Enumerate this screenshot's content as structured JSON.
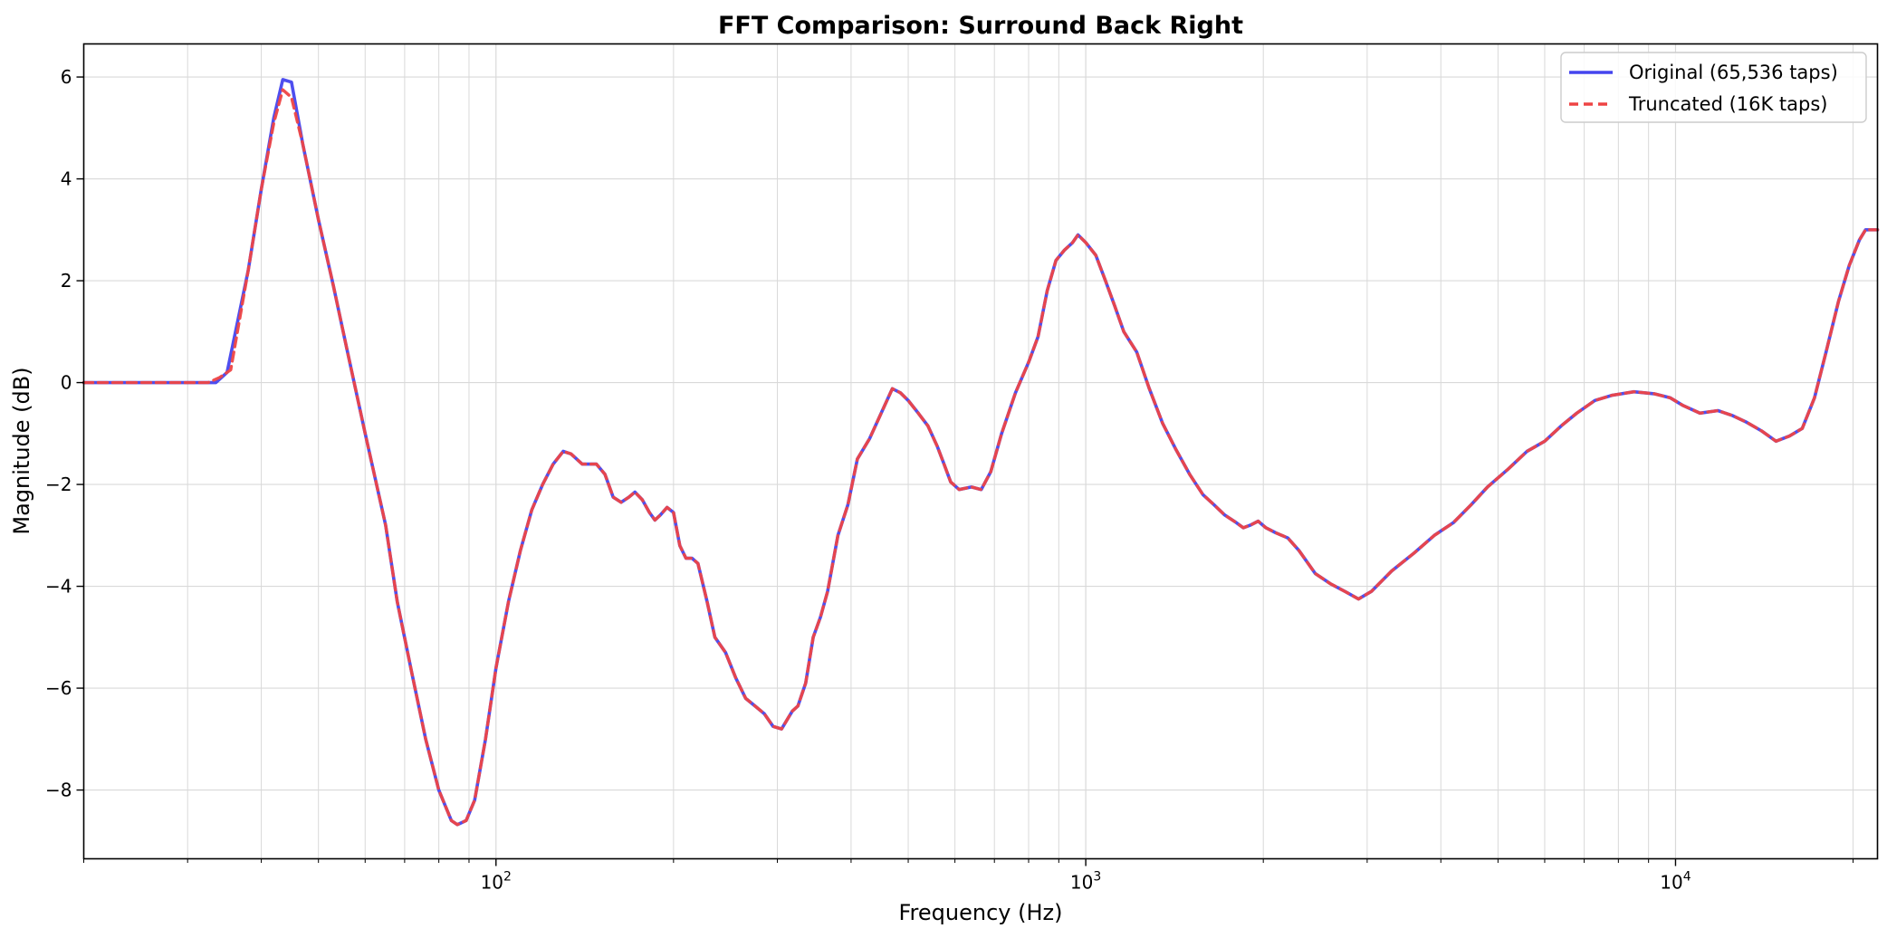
{
  "chart_data": {
    "type": "line",
    "title": "FFT Comparison: Surround Back Right",
    "xlabel": "Frequency (Hz)",
    "ylabel": "Magnitude (dB)",
    "xscale": "log",
    "xlim": [
      20,
      22000
    ],
    "ylim": [
      -9.35,
      6.65
    ],
    "x_ticks": [
      {
        "value": 100,
        "base": "10",
        "exp": "2"
      },
      {
        "value": 1000,
        "base": "10",
        "exp": "3"
      },
      {
        "value": 10000,
        "base": "10",
        "exp": "4"
      }
    ],
    "y_ticks": [
      {
        "value": 6,
        "label": "6"
      },
      {
        "value": 4,
        "label": "4"
      },
      {
        "value": 2,
        "label": "2"
      },
      {
        "value": 0,
        "label": "0"
      },
      {
        "value": -2,
        "label": "−2"
      },
      {
        "value": -4,
        "label": "−4"
      },
      {
        "value": -6,
        "label": "−6"
      },
      {
        "value": -8,
        "label": "−8"
      }
    ],
    "grid": true,
    "legend_position": "top-right",
    "series": [
      {
        "name": "Original (65,536 taps)",
        "color": "#4444ee",
        "style": "solid",
        "points": [
          [
            20,
            0
          ],
          [
            30,
            0
          ],
          [
            33.5,
            0.0
          ],
          [
            35,
            0.2
          ],
          [
            38,
            2.2
          ],
          [
            40,
            3.8
          ],
          [
            42,
            5.2
          ],
          [
            43.5,
            5.95
          ],
          [
            45,
            5.9
          ],
          [
            47,
            4.7
          ],
          [
            50,
            3.2
          ],
          [
            53,
            1.9
          ],
          [
            56,
            0.6
          ],
          [
            60,
            -1.0
          ],
          [
            65,
            -2.8
          ],
          [
            68,
            -4.3
          ],
          [
            72,
            -5.7
          ],
          [
            76,
            -7.0
          ],
          [
            80,
            -8.0
          ],
          [
            84,
            -8.6
          ],
          [
            86,
            -8.68
          ],
          [
            89,
            -8.6
          ],
          [
            92,
            -8.2
          ],
          [
            96,
            -7.0
          ],
          [
            100,
            -5.6
          ],
          [
            105,
            -4.3
          ],
          [
            110,
            -3.3
          ],
          [
            115,
            -2.5
          ],
          [
            120,
            -2.0
          ],
          [
            125,
            -1.6
          ],
          [
            130,
            -1.35
          ],
          [
            134,
            -1.4
          ],
          [
            140,
            -1.6
          ],
          [
            148,
            -1.6
          ],
          [
            153,
            -1.8
          ],
          [
            158,
            -2.25
          ],
          [
            163,
            -2.35
          ],
          [
            168,
            -2.25
          ],
          [
            172,
            -2.15
          ],
          [
            177,
            -2.3
          ],
          [
            182,
            -2.55
          ],
          [
            186,
            -2.7
          ],
          [
            190,
            -2.6
          ],
          [
            195,
            -2.45
          ],
          [
            200,
            -2.55
          ],
          [
            205,
            -3.2
          ],
          [
            210,
            -3.45
          ],
          [
            215,
            -3.45
          ],
          [
            220,
            -3.55
          ],
          [
            228,
            -4.3
          ],
          [
            235,
            -5.0
          ],
          [
            245,
            -5.3
          ],
          [
            255,
            -5.8
          ],
          [
            265,
            -6.2
          ],
          [
            275,
            -6.35
          ],
          [
            285,
            -6.5
          ],
          [
            295,
            -6.75
          ],
          [
            305,
            -6.8
          ],
          [
            318,
            -6.45
          ],
          [
            325,
            -6.35
          ],
          [
            335,
            -5.9
          ],
          [
            345,
            -5.0
          ],
          [
            355,
            -4.6
          ],
          [
            365,
            -4.1
          ],
          [
            380,
            -3.0
          ],
          [
            395,
            -2.4
          ],
          [
            410,
            -1.5
          ],
          [
            430,
            -1.1
          ],
          [
            450,
            -0.6
          ],
          [
            470,
            -0.12
          ],
          [
            485,
            -0.2
          ],
          [
            500,
            -0.35
          ],
          [
            520,
            -0.6
          ],
          [
            540,
            -0.85
          ],
          [
            560,
            -1.25
          ],
          [
            575,
            -1.6
          ],
          [
            590,
            -1.95
          ],
          [
            610,
            -2.1
          ],
          [
            640,
            -2.05
          ],
          [
            665,
            -2.1
          ],
          [
            690,
            -1.75
          ],
          [
            720,
            -1.0
          ],
          [
            760,
            -0.2
          ],
          [
            800,
            0.4
          ],
          [
            830,
            0.9
          ],
          [
            860,
            1.8
          ],
          [
            890,
            2.4
          ],
          [
            920,
            2.6
          ],
          [
            950,
            2.75
          ],
          [
            970,
            2.9
          ],
          [
            1000,
            2.75
          ],
          [
            1040,
            2.5
          ],
          [
            1080,
            2.0
          ],
          [
            1120,
            1.5
          ],
          [
            1160,
            1.0
          ],
          [
            1220,
            0.6
          ],
          [
            1280,
            -0.1
          ],
          [
            1350,
            -0.8
          ],
          [
            1420,
            -1.3
          ],
          [
            1500,
            -1.8
          ],
          [
            1580,
            -2.2
          ],
          [
            1650,
            -2.4
          ],
          [
            1720,
            -2.6
          ],
          [
            1800,
            -2.75
          ],
          [
            1850,
            -2.85
          ],
          [
            1900,
            -2.8
          ],
          [
            1960,
            -2.72
          ],
          [
            2020,
            -2.85
          ],
          [
            2100,
            -2.95
          ],
          [
            2200,
            -3.05
          ],
          [
            2300,
            -3.3
          ],
          [
            2450,
            -3.75
          ],
          [
            2600,
            -3.95
          ],
          [
            2750,
            -4.1
          ],
          [
            2900,
            -4.25
          ],
          [
            3050,
            -4.1
          ],
          [
            3300,
            -3.7
          ],
          [
            3600,
            -3.35
          ],
          [
            3900,
            -3.0
          ],
          [
            4200,
            -2.75
          ],
          [
            4500,
            -2.4
          ],
          [
            4800,
            -2.05
          ],
          [
            5200,
            -1.7
          ],
          [
            5600,
            -1.35
          ],
          [
            6000,
            -1.15
          ],
          [
            6400,
            -0.85
          ],
          [
            6800,
            -0.6
          ],
          [
            7300,
            -0.35
          ],
          [
            7800,
            -0.25
          ],
          [
            8500,
            -0.18
          ],
          [
            9200,
            -0.22
          ],
          [
            9800,
            -0.3
          ],
          [
            10300,
            -0.45
          ],
          [
            11000,
            -0.6
          ],
          [
            11800,
            -0.55
          ],
          [
            12500,
            -0.65
          ],
          [
            13200,
            -0.78
          ],
          [
            14000,
            -0.95
          ],
          [
            14800,
            -1.15
          ],
          [
            15600,
            -1.05
          ],
          [
            16400,
            -0.9
          ],
          [
            17200,
            -0.3
          ],
          [
            18000,
            0.6
          ],
          [
            18900,
            1.6
          ],
          [
            19700,
            2.3
          ],
          [
            20500,
            2.8
          ],
          [
            21000,
            3.0
          ],
          [
            22000,
            3.0
          ]
        ]
      },
      {
        "name": "Truncated (16K taps)",
        "color": "#ee4444",
        "style": "dashed",
        "points": [
          [
            20,
            0
          ],
          [
            30,
            0
          ],
          [
            32.5,
            0.0
          ],
          [
            34,
            0.1
          ],
          [
            35.5,
            0.25
          ],
          [
            38,
            2.2
          ],
          [
            40,
            3.8
          ],
          [
            42,
            5.1
          ],
          [
            43.5,
            5.75
          ],
          [
            45,
            5.6
          ],
          [
            47,
            4.7
          ],
          [
            50,
            3.2
          ],
          [
            53,
            1.9
          ],
          [
            56,
            0.6
          ],
          [
            60,
            -1.0
          ],
          [
            65,
            -2.8
          ],
          [
            68,
            -4.3
          ],
          [
            72,
            -5.7
          ],
          [
            76,
            -7.0
          ],
          [
            80,
            -8.0
          ],
          [
            84,
            -8.6
          ],
          [
            86,
            -8.68
          ],
          [
            89,
            -8.6
          ],
          [
            92,
            -8.2
          ],
          [
            96,
            -7.0
          ],
          [
            100,
            -5.6
          ],
          [
            105,
            -4.3
          ],
          [
            110,
            -3.3
          ],
          [
            115,
            -2.5
          ],
          [
            120,
            -2.0
          ],
          [
            125,
            -1.6
          ],
          [
            130,
            -1.35
          ],
          [
            134,
            -1.4
          ],
          [
            140,
            -1.6
          ],
          [
            148,
            -1.6
          ],
          [
            153,
            -1.8
          ],
          [
            158,
            -2.25
          ],
          [
            163,
            -2.35
          ],
          [
            168,
            -2.25
          ],
          [
            172,
            -2.15
          ],
          [
            177,
            -2.3
          ],
          [
            182,
            -2.55
          ],
          [
            186,
            -2.7
          ],
          [
            190,
            -2.6
          ],
          [
            195,
            -2.45
          ],
          [
            200,
            -2.55
          ],
          [
            205,
            -3.2
          ],
          [
            210,
            -3.45
          ],
          [
            215,
            -3.45
          ],
          [
            220,
            -3.55
          ],
          [
            228,
            -4.3
          ],
          [
            235,
            -5.0
          ],
          [
            245,
            -5.3
          ],
          [
            255,
            -5.8
          ],
          [
            265,
            -6.2
          ],
          [
            275,
            -6.35
          ],
          [
            285,
            -6.5
          ],
          [
            295,
            -6.75
          ],
          [
            305,
            -6.8
          ],
          [
            318,
            -6.45
          ],
          [
            325,
            -6.35
          ],
          [
            335,
            -5.9
          ],
          [
            345,
            -5.0
          ],
          [
            355,
            -4.6
          ],
          [
            365,
            -4.1
          ],
          [
            380,
            -3.0
          ],
          [
            395,
            -2.4
          ],
          [
            410,
            -1.5
          ],
          [
            430,
            -1.1
          ],
          [
            450,
            -0.6
          ],
          [
            470,
            -0.12
          ],
          [
            485,
            -0.2
          ],
          [
            500,
            -0.35
          ],
          [
            520,
            -0.6
          ],
          [
            540,
            -0.85
          ],
          [
            560,
            -1.25
          ],
          [
            575,
            -1.6
          ],
          [
            590,
            -1.95
          ],
          [
            610,
            -2.1
          ],
          [
            640,
            -2.05
          ],
          [
            665,
            -2.1
          ],
          [
            690,
            -1.75
          ],
          [
            720,
            -1.0
          ],
          [
            760,
            -0.2
          ],
          [
            800,
            0.4
          ],
          [
            830,
            0.9
          ],
          [
            860,
            1.8
          ],
          [
            890,
            2.4
          ],
          [
            920,
            2.6
          ],
          [
            950,
            2.75
          ],
          [
            970,
            2.9
          ],
          [
            1000,
            2.75
          ],
          [
            1040,
            2.5
          ],
          [
            1080,
            2.0
          ],
          [
            1120,
            1.5
          ],
          [
            1160,
            1.0
          ],
          [
            1220,
            0.6
          ],
          [
            1280,
            -0.1
          ],
          [
            1350,
            -0.8
          ],
          [
            1420,
            -1.3
          ],
          [
            1500,
            -1.8
          ],
          [
            1580,
            -2.2
          ],
          [
            1650,
            -2.4
          ],
          [
            1720,
            -2.6
          ],
          [
            1800,
            -2.75
          ],
          [
            1850,
            -2.85
          ],
          [
            1900,
            -2.8
          ],
          [
            1960,
            -2.72
          ],
          [
            2020,
            -2.85
          ],
          [
            2100,
            -2.95
          ],
          [
            2200,
            -3.05
          ],
          [
            2300,
            -3.3
          ],
          [
            2450,
            -3.75
          ],
          [
            2600,
            -3.95
          ],
          [
            2750,
            -4.1
          ],
          [
            2900,
            -4.25
          ],
          [
            3050,
            -4.1
          ],
          [
            3300,
            -3.7
          ],
          [
            3600,
            -3.35
          ],
          [
            3900,
            -3.0
          ],
          [
            4200,
            -2.75
          ],
          [
            4500,
            -2.4
          ],
          [
            4800,
            -2.05
          ],
          [
            5200,
            -1.7
          ],
          [
            5600,
            -1.35
          ],
          [
            6000,
            -1.15
          ],
          [
            6400,
            -0.85
          ],
          [
            6800,
            -0.6
          ],
          [
            7300,
            -0.35
          ],
          [
            7800,
            -0.25
          ],
          [
            8500,
            -0.18
          ],
          [
            9200,
            -0.22
          ],
          [
            9800,
            -0.3
          ],
          [
            10300,
            -0.45
          ],
          [
            11000,
            -0.6
          ],
          [
            11800,
            -0.55
          ],
          [
            12500,
            -0.65
          ],
          [
            13200,
            -0.78
          ],
          [
            14000,
            -0.95
          ],
          [
            14800,
            -1.15
          ],
          [
            15600,
            -1.05
          ],
          [
            16400,
            -0.9
          ],
          [
            17200,
            -0.3
          ],
          [
            18000,
            0.6
          ],
          [
            18900,
            1.6
          ],
          [
            19700,
            2.3
          ],
          [
            20500,
            2.8
          ],
          [
            21000,
            3.0
          ],
          [
            22000,
            3.0
          ]
        ]
      }
    ]
  }
}
